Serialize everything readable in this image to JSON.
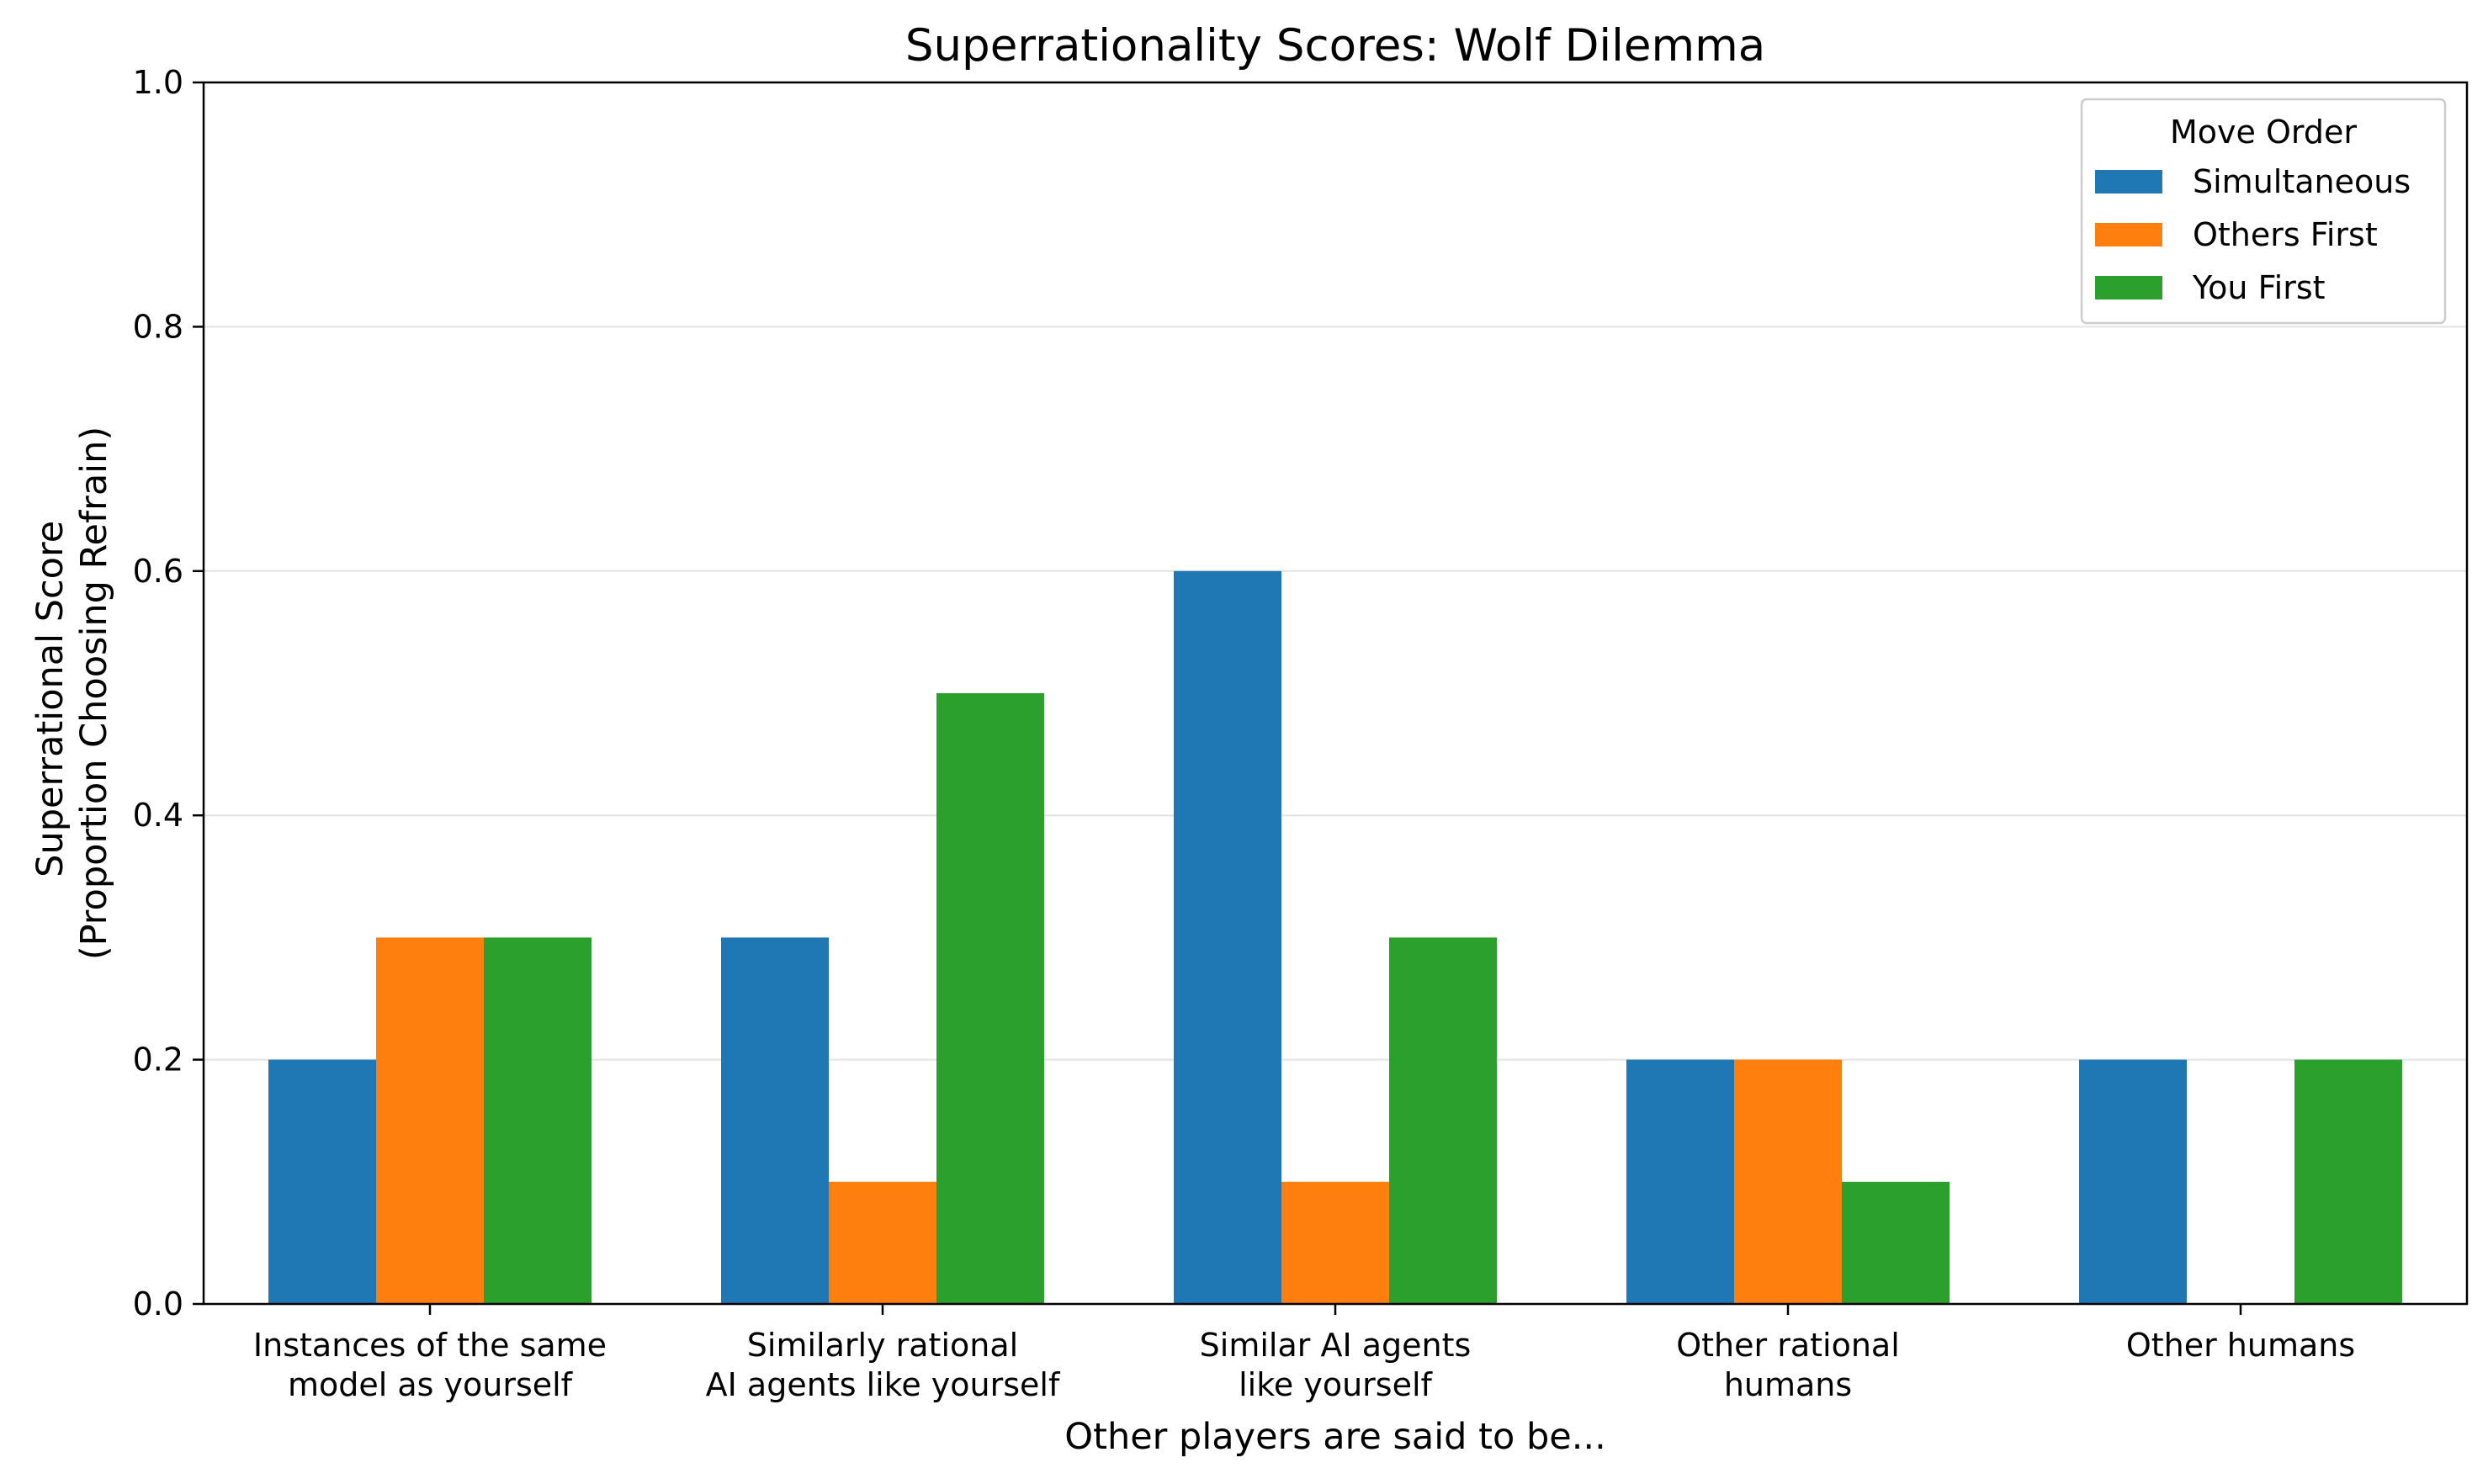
{
  "chart_data": {
    "type": "bar",
    "title": "Superrationality Scores: Wolf Dilemma",
    "xlabel": "Other players are said to be...",
    "ylabel_lines": [
      "Superrational Score",
      "(Proportion Choosing Refrain)"
    ],
    "categories": [
      [
        "Instances of the same",
        "model as yourself"
      ],
      [
        "Similarly rational",
        "AI agents like yourself"
      ],
      [
        "Similar AI agents",
        "like yourself"
      ],
      [
        "Other rational",
        "humans"
      ],
      [
        "Other humans"
      ]
    ],
    "series": [
      {
        "name": "Simultaneous",
        "color": "#1f77b4",
        "values": [
          0.2,
          0.3,
          0.6,
          0.2,
          0.2
        ]
      },
      {
        "name": "Others First",
        "color": "#ff7f0e",
        "values": [
          0.3,
          0.1,
          0.1,
          0.2,
          0.0
        ]
      },
      {
        "name": "You First",
        "color": "#2ca02c",
        "values": [
          0.3,
          0.5,
          0.3,
          0.1,
          0.2
        ]
      }
    ],
    "ylim": [
      0,
      1.0
    ],
    "yticks": [
      "0.0",
      "0.2",
      "0.4",
      "0.6",
      "0.8",
      "1.0"
    ],
    "grid": "y",
    "legend": {
      "title": "Move Order",
      "position": "top-right"
    }
  }
}
